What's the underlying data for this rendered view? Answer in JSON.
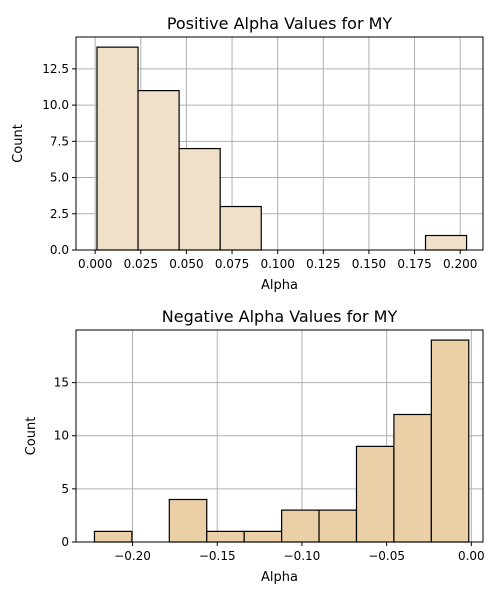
{
  "chart_data": [
    {
      "type": "bar",
      "title": "Positive Alpha Values for MY",
      "xlabel": "Alpha",
      "ylabel": "Count",
      "xlim": [
        -0.0105,
        0.2125
      ],
      "ylim": [
        0,
        14.7
      ],
      "xticks": [
        0.0,
        0.025,
        0.05,
        0.075,
        0.1,
        0.125,
        0.15,
        0.175,
        0.2
      ],
      "xtick_labels": [
        "0.000",
        "0.025",
        "0.050",
        "0.075",
        "0.100",
        "0.125",
        "0.150",
        "0.175",
        "0.200"
      ],
      "yticks": [
        0,
        2.5,
        5,
        7.5,
        10,
        12.5
      ],
      "ytick_labels": [
        "0.0",
        "2.5",
        "5.0",
        "7.5",
        "10.0",
        "12.5"
      ],
      "bin_edges": [
        0.001,
        0.0235,
        0.046,
        0.0685,
        0.091,
        0.1135,
        0.136,
        0.1585,
        0.181,
        0.2035
      ],
      "values": [
        14,
        11,
        7,
        3,
        0,
        0,
        0,
        0,
        1
      ],
      "bar_color": "#f0e0c8",
      "grid": true
    },
    {
      "type": "bar",
      "title": "Negative Alpha Values for MY",
      "xlabel": "Alpha",
      "ylabel": "Count",
      "xlim": [
        -0.2334,
        0.0069
      ],
      "ylim": [
        0,
        19.95
      ],
      "xticks": [
        -0.2,
        -0.15,
        -0.1,
        -0.05,
        0.0
      ],
      "xtick_labels": [
        "−0.20",
        "−0.15",
        "−0.10",
        "−0.05",
        "0.00"
      ],
      "yticks": [
        0,
        5,
        10,
        15
      ],
      "ytick_labels": [
        "0",
        "5",
        "10",
        "15"
      ],
      "bin_edges": [
        -0.2225,
        -0.2004,
        -0.1783,
        -0.1562,
        -0.1341,
        -0.112,
        -0.0899,
        -0.0678,
        -0.0457,
        -0.0236,
        -0.0015
      ],
      "values": [
        1,
        0,
        4,
        1,
        1,
        3,
        3,
        9,
        12,
        19
      ],
      "bar_color": "#ebcfa6",
      "grid": true
    }
  ]
}
